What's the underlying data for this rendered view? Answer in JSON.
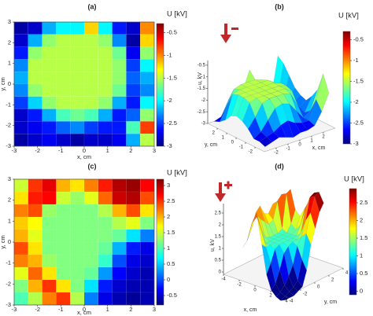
{
  "chart_data": [
    {
      "type": "heatmap",
      "label": "(a)",
      "x_label": "x, cm",
      "y_label": "y, cm",
      "colorbar_title": "U [kV]",
      "colormap": "jet",
      "x": [
        -2.7,
        -2.1,
        -1.5,
        -0.9,
        -0.3,
        0.3,
        0.9,
        1.5,
        2.1,
        2.7
      ],
      "y": [
        2.7,
        2.1,
        1.5,
        0.9,
        0.3,
        -0.3,
        -0.9,
        -1.5,
        -2.1,
        -2.7
      ],
      "z": [
        [
          -2.9,
          -2.8,
          -2.2,
          -2.0,
          -2.0,
          -1.2,
          -2.0,
          -2.6,
          -2.8,
          -1.0
        ],
        [
          -2.8,
          -2.2,
          -1.6,
          -1.5,
          -1.5,
          -1.5,
          -1.6,
          -2.3,
          -2.9,
          -1.2
        ],
        [
          -2.6,
          -1.6,
          -1.5,
          -1.5,
          -1.5,
          -1.5,
          -1.5,
          -1.7,
          -2.7,
          -1.6
        ],
        [
          -2.3,
          -1.5,
          -1.5,
          -1.5,
          -1.5,
          -1.5,
          -1.5,
          -1.6,
          -2.5,
          -2.0
        ],
        [
          -2.2,
          -1.5,
          -1.5,
          -1.5,
          -1.5,
          -1.5,
          -1.5,
          -1.6,
          -2.4,
          -2.2
        ],
        [
          -2.3,
          -1.6,
          -1.5,
          -1.5,
          -1.5,
          -1.5,
          -1.5,
          -1.7,
          -2.5,
          -2.3
        ],
        [
          -2.5,
          -2.1,
          -1.6,
          -1.5,
          -1.5,
          -1.5,
          -1.6,
          -2.2,
          -2.6,
          -2.0
        ],
        [
          -2.8,
          -2.6,
          -2.2,
          -1.8,
          -1.7,
          -1.8,
          -2.2,
          -2.6,
          -2.4,
          -1.6
        ],
        [
          -2.8,
          -2.7,
          -2.6,
          -2.4,
          -2.3,
          -2.5,
          -2.6,
          -2.6,
          -1.8,
          -0.8
        ],
        [
          -2.9,
          -2.8,
          -2.7,
          -2.8,
          -2.9,
          -2.8,
          -2.8,
          -2.7,
          -2.2,
          -1.5
        ]
      ],
      "xlim": [
        -3,
        3
      ],
      "ylim": [
        -3,
        3
      ],
      "xticks": [
        -3,
        -2,
        -1,
        0,
        1,
        2,
        3
      ],
      "yticks": [
        -3,
        -2,
        -1,
        0,
        1,
        2,
        3
      ],
      "zlim": [
        -3,
        -0.3
      ],
      "zticks": [
        -0.5,
        -1,
        -1.5,
        -2,
        -2.5,
        -3
      ]
    },
    {
      "type": "surface3d",
      "label": "(b)",
      "x_label": "x, cm",
      "y_label": "y, cm",
      "z_label": "u, kV",
      "colorbar_title": "U [kV]",
      "colormap": "jet",
      "xlim": [
        -3,
        3
      ],
      "ylim": [
        -3,
        3
      ],
      "xticks": [
        -2,
        -1,
        0,
        1,
        2
      ],
      "yticks": [
        -2,
        -1,
        0,
        1,
        2
      ],
      "zlim": [
        -3,
        -0.3
      ],
      "zticks": [
        -0.5,
        -1,
        -1.5,
        -2,
        -2.5,
        -3
      ]
    },
    {
      "type": "heatmap",
      "label": "(c)",
      "x_label": "x, cm",
      "y_label": "y, cm",
      "colorbar_title": "U [kV]",
      "colormap": "jet",
      "x": [
        -2.7,
        -2.1,
        -1.5,
        -0.9,
        -0.3,
        0.3,
        0.9,
        1.5,
        2.1,
        2.7
      ],
      "y": [
        2.7,
        2.1,
        1.5,
        0.9,
        0.3,
        -0.3,
        -0.9,
        -1.5,
        -2.1,
        -2.7
      ],
      "z": [
        [
          1.5,
          2.5,
          2.8,
          2.0,
          1.8,
          2.2,
          2.6,
          3.0,
          3.1,
          2.7
        ],
        [
          1.8,
          2.6,
          2.7,
          1.5,
          1.3,
          1.6,
          2.3,
          2.9,
          3.0,
          2.4
        ],
        [
          2.2,
          2.4,
          1.3,
          1.2,
          1.2,
          1.2,
          1.4,
          2.0,
          2.4,
          1.8
        ],
        [
          1.9,
          1.7,
          1.2,
          1.2,
          1.2,
          1.2,
          1.2,
          1.4,
          1.6,
          1.2
        ],
        [
          2.0,
          1.6,
          1.2,
          1.2,
          1.2,
          1.2,
          1.2,
          1.1,
          0.6,
          0.2
        ],
        [
          2.4,
          1.8,
          1.2,
          1.2,
          1.2,
          1.2,
          1.1,
          0.4,
          -0.2,
          -0.4
        ],
        [
          2.2,
          2.0,
          1.3,
          1.2,
          1.2,
          1.2,
          0.9,
          0.0,
          -0.4,
          -0.5
        ],
        [
          1.6,
          2.3,
          1.8,
          1.2,
          1.2,
          1.1,
          0.3,
          -0.3,
          -0.5,
          -0.6
        ],
        [
          1.2,
          2.0,
          2.5,
          1.8,
          1.2,
          0.6,
          -0.2,
          -0.5,
          -0.6,
          -0.6
        ],
        [
          1.0,
          1.4,
          2.2,
          2.5,
          1.4,
          0.2,
          -0.4,
          -0.6,
          -0.7,
          -0.6
        ]
      ],
      "xlim": [
        -3,
        3
      ],
      "ylim": [
        -3,
        3
      ],
      "xticks": [
        -3,
        -2,
        -1,
        0,
        1,
        2,
        3
      ],
      "yticks": [
        -3,
        -2,
        -1,
        0,
        1,
        2,
        3
      ],
      "zlim": [
        -0.8,
        3.2
      ],
      "zticks": [
        3,
        2.5,
        2,
        1.5,
        1,
        0.5,
        0,
        -0.5
      ]
    },
    {
      "type": "surface3d",
      "label": "(d)",
      "x_label": "x, cm",
      "y_label": "y, cm",
      "z_label": "u, kV",
      "colorbar_title": "U [kV]",
      "colormap": "jet",
      "xlim": [
        -4,
        4
      ],
      "ylim": [
        -4,
        4
      ],
      "xticks": [
        -4,
        -2,
        0,
        2,
        4
      ],
      "yticks": [
        -4,
        -2,
        0,
        2,
        4
      ],
      "zlim": [
        -0.1,
        2.9
      ],
      "zticks": [
        2.5,
        2,
        1.5,
        1,
        0.5,
        0
      ]
    }
  ]
}
